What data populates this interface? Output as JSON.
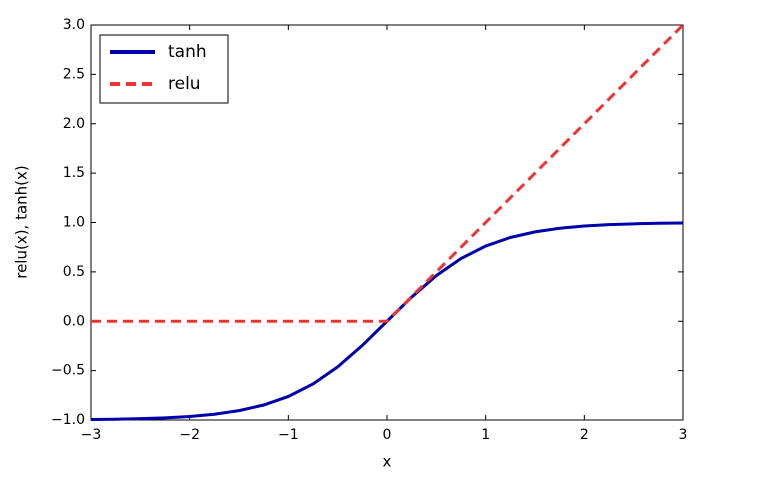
{
  "chart_data": {
    "type": "line",
    "xlabel": "x",
    "ylabel": "relu(x), tanh(x)",
    "x": [
      -3,
      -2.75,
      -2.5,
      -2.25,
      -2,
      -1.75,
      -1.5,
      -1.25,
      -1,
      -0.75,
      -0.5,
      -0.25,
      0,
      0.25,
      0.5,
      0.75,
      1,
      1.25,
      1.5,
      1.75,
      2,
      2.25,
      2.5,
      2.75,
      3
    ],
    "series": [
      {
        "name": "tanh",
        "color": "#0000aa",
        "style": "solid",
        "values": [
          -0.9951,
          -0.9918,
          -0.9866,
          -0.978,
          -0.964,
          -0.9414,
          -0.9051,
          -0.8483,
          -0.7616,
          -0.6351,
          -0.4621,
          -0.2449,
          0,
          0.2449,
          0.4621,
          0.6351,
          0.7616,
          0.8483,
          0.9051,
          0.9414,
          0.964,
          0.978,
          0.9866,
          0.9918,
          0.9951
        ]
      },
      {
        "name": "relu",
        "color": "#ee3333",
        "style": "dashed",
        "values": [
          0,
          0,
          0,
          0,
          0,
          0,
          0,
          0,
          0,
          0,
          0,
          0,
          0,
          0.25,
          0.5,
          0.75,
          1,
          1.25,
          1.5,
          1.75,
          2,
          2.25,
          2.5,
          2.75,
          3
        ]
      }
    ],
    "xlim": [
      -3,
      3
    ],
    "xticks": [
      {
        "value": -3,
        "label": "−3"
      },
      {
        "value": -2,
        "label": "−2"
      },
      {
        "value": -1,
        "label": "−1"
      },
      0,
      1,
      2,
      3
    ],
    "ylim": [
      -1,
      3
    ],
    "yticks": [
      {
        "value": -1,
        "label": "−1.0"
      },
      {
        "value": -0.5,
        "label": "−0.5"
      },
      {
        "value": 0,
        "label": "0.0"
      },
      {
        "value": 0.5,
        "label": "0.5"
      },
      {
        "value": 1,
        "label": "1.0"
      },
      {
        "value": 1.5,
        "label": "1.5"
      },
      {
        "value": 2,
        "label": "2.0"
      },
      {
        "value": 2.5,
        "label": "2.5"
      },
      {
        "value": 3,
        "label": "3.0"
      }
    ],
    "legend": "upper left"
  }
}
